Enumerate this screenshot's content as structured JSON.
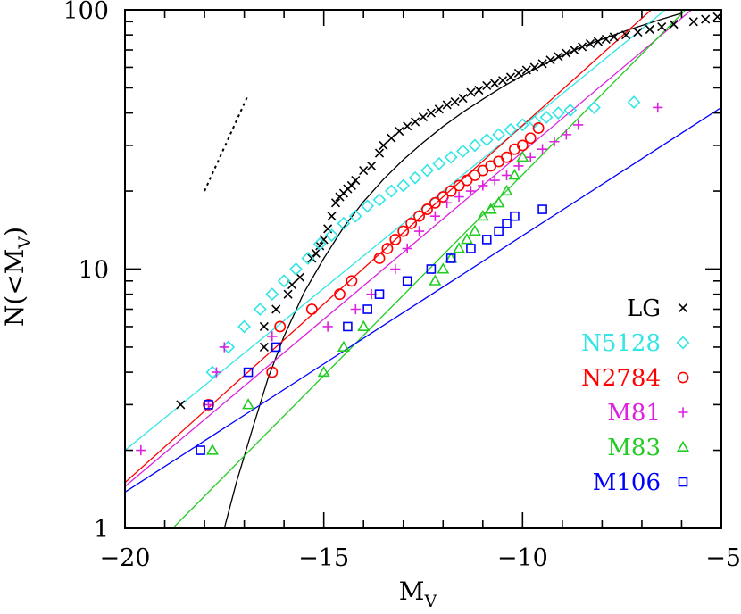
{
  "chart_data": {
    "type": "scatter",
    "x_axis": {
      "label": "M",
      "label_subscript": "V",
      "range": [
        -20,
        -5
      ],
      "major_ticks": [
        -20,
        -15,
        -10,
        -5
      ],
      "tick_labels": [
        "−20",
        "−15",
        "−10",
        "−5"
      ],
      "minor_step": 1
    },
    "y_axis": {
      "label": "N(<M",
      "label_subscript": "V",
      "label_suffix": ")",
      "scale": "log",
      "range": [
        1,
        100
      ],
      "major_ticks": [
        1,
        10,
        100
      ],
      "tick_labels": [
        "1",
        "10",
        "100"
      ]
    },
    "legend_placement": "lower-right",
    "reference_line": {
      "style": "dotted",
      "x": [
        -18.0,
        -16.9
      ],
      "y": [
        20,
        47
      ]
    },
    "series": [
      {
        "name": "LG",
        "color": "#000000",
        "marker": "cross",
        "x": [
          -18.6,
          -16.5,
          -16.5,
          -16.2,
          -15.9,
          -15.8,
          -15.6,
          -15.3,
          -15.2,
          -15.1,
          -15.0,
          -14.9,
          -14.8,
          -14.7,
          -14.6,
          -14.5,
          -14.4,
          -14.3,
          -14.2,
          -14.0,
          -13.8,
          -13.6,
          -13.5,
          -13.3,
          -13.1,
          -12.9,
          -12.7,
          -12.5,
          -12.3,
          -12.1,
          -11.9,
          -11.7,
          -11.5,
          -11.3,
          -11.1,
          -10.9,
          -10.7,
          -10.5,
          -10.3,
          -10.1,
          -9.9,
          -9.7,
          -9.5,
          -9.3,
          -9.1,
          -8.9,
          -8.7,
          -8.5,
          -8.3,
          -8.1,
          -7.9,
          -7.7,
          -7.4,
          -7.1,
          -6.8,
          -6.5,
          -6.2,
          -5.7,
          -5.4,
          -5.1
        ],
        "y": [
          3,
          5,
          6,
          7,
          8,
          8.7,
          9.3,
          11,
          11.5,
          12.3,
          13,
          14.3,
          16,
          18,
          19,
          19.6,
          20.4,
          21,
          22,
          24,
          25,
          28,
          30,
          32,
          34,
          35.6,
          37,
          38.6,
          40,
          41.4,
          43,
          44.2,
          45.6,
          48,
          49,
          51,
          52,
          53.4,
          55,
          57,
          58.6,
          60,
          62,
          64,
          66,
          68,
          70,
          72,
          74,
          75.4,
          77,
          78.6,
          80,
          82,
          84,
          86,
          88,
          90,
          92,
          94
        ]
      },
      {
        "name": "N5128",
        "color": "#33e5e5",
        "marker": "diamond",
        "x": [
          -17.8,
          -17.4,
          -17.0,
          -16.6,
          -16.3,
          -16.0,
          -15.7,
          -15.4,
          -15.1,
          -14.8,
          -14.5,
          -14.2,
          -13.9,
          -13.6,
          -13.3,
          -13.0,
          -12.7,
          -12.4,
          -12.1,
          -11.8,
          -11.5,
          -11.2,
          -10.9,
          -10.6,
          -10.3,
          -10.0,
          -9.7,
          -9.4,
          -9.1,
          -8.8,
          -8.2,
          -7.2
        ],
        "y": [
          4,
          5,
          6,
          7,
          8,
          9,
          10,
          11,
          12.5,
          13.5,
          15,
          16,
          17.5,
          18.5,
          20,
          21,
          22.5,
          24,
          25.5,
          27,
          28.5,
          30,
          31.5,
          33,
          34.5,
          36,
          37,
          38.5,
          40,
          41,
          42,
          44
        ]
      },
      {
        "name": "N2784",
        "color": "#ff0000",
        "marker": "circle",
        "x": [
          -17.9,
          -16.3,
          -16.1,
          -15.3,
          -14.6,
          -14.3,
          -13.6,
          -13.4,
          -13.2,
          -13.0,
          -12.8,
          -12.6,
          -12.4,
          -12.2,
          -12.0,
          -11.8,
          -11.6,
          -11.4,
          -11.2,
          -11.0,
          -10.8,
          -10.6,
          -10.4,
          -10.2,
          -10.0,
          -9.8,
          -9.6
        ],
        "y": [
          3,
          4,
          6,
          7,
          8,
          9,
          11,
          12,
          13,
          14,
          15,
          16,
          17,
          18,
          19,
          20,
          21,
          22,
          23,
          24,
          25,
          26,
          27,
          29,
          30,
          32,
          35
        ]
      },
      {
        "name": "M81",
        "color": "#dd22dd",
        "marker": "plus",
        "x": [
          -19.6,
          -17.9,
          -17.7,
          -17.5,
          -16.3,
          -14.9,
          -14.2,
          -13.8,
          -13.2,
          -12.9,
          -12.6,
          -12.2,
          -11.9,
          -11.6,
          -11.3,
          -11.0,
          -10.7,
          -10.4,
          -10.1,
          -9.8,
          -9.5,
          -9.2,
          -8.9,
          -8.6,
          -6.6
        ],
        "y": [
          2,
          3,
          4,
          5,
          5.5,
          6,
          7,
          8,
          10,
          12,
          14,
          16,
          18,
          19,
          20,
          21,
          22,
          23,
          25,
          27,
          29,
          31,
          33,
          36,
          42
        ]
      },
      {
        "name": "M83",
        "color": "#22cc22",
        "marker": "triangle",
        "x": [
          -17.8,
          -16.9,
          -15.0,
          -14.5,
          -14.0,
          -12.2,
          -12.0,
          -11.8,
          -11.6,
          -11.4,
          -11.2,
          -11.0,
          -10.8,
          -10.6,
          -10.4,
          -10.2,
          -10.0
        ],
        "y": [
          2,
          3,
          4,
          5,
          6,
          9,
          10,
          11,
          12,
          13,
          14,
          16,
          17,
          18,
          20,
          23,
          27
        ]
      },
      {
        "name": "M106",
        "color": "#0000ff",
        "marker": "square",
        "x": [
          -18.1,
          -17.9,
          -16.9,
          -16.2,
          -14.4,
          -13.9,
          -13.6,
          -12.9,
          -12.3,
          -11.8,
          -11.3,
          -10.9,
          -10.6,
          -10.4,
          -10.2,
          -9.5
        ],
        "y": [
          2,
          3,
          4,
          5,
          6,
          7,
          8,
          9,
          10,
          11,
          12,
          13,
          14,
          15,
          16,
          17
        ]
      }
    ],
    "fits": [
      {
        "series": "LG",
        "color": "#000000",
        "x": [
          -17.5,
          -17.2,
          -16.8,
          -16.4,
          -16.0,
          -15.5,
          -15.0,
          -14.5,
          -14.0,
          -13.5,
          -13.0,
          -12.5,
          -12.0,
          -11.5,
          -11.0,
          -10.5,
          -10.0,
          -9.5,
          -9.0,
          -8.5,
          -8.0,
          -7.5,
          -7.0,
          -6.5,
          -6.0
        ],
        "y": [
          1,
          1.5,
          2.4,
          3.8,
          5.5,
          8.1,
          11,
          14.5,
          18.2,
          22.2,
          26.4,
          30.8,
          35.5,
          40.3,
          45.2,
          50.5,
          55.8,
          61.2,
          66.5,
          72,
          77,
          82,
          87,
          92,
          97
        ]
      },
      {
        "series": "N5128",
        "color": "#33e5e5",
        "x": [
          -20,
          -5
        ],
        "y": [
          2,
          150
        ]
      },
      {
        "series": "N2784",
        "color": "#ff0000",
        "x": [
          -20,
          -5
        ],
        "y": [
          1.5,
          175
        ]
      },
      {
        "series": "M81",
        "color": "#dd22dd",
        "x": [
          -20,
          -5
        ],
        "y": [
          1.45,
          125
        ]
      },
      {
        "series": "M83",
        "color": "#22cc22",
        "x": [
          -18.8,
          -5.9
        ],
        "y": [
          1,
          100
        ]
      },
      {
        "series": "M106",
        "color": "#0000ff",
        "x": [
          -20,
          -5
        ],
        "y": [
          1.38,
          42
        ]
      }
    ]
  }
}
